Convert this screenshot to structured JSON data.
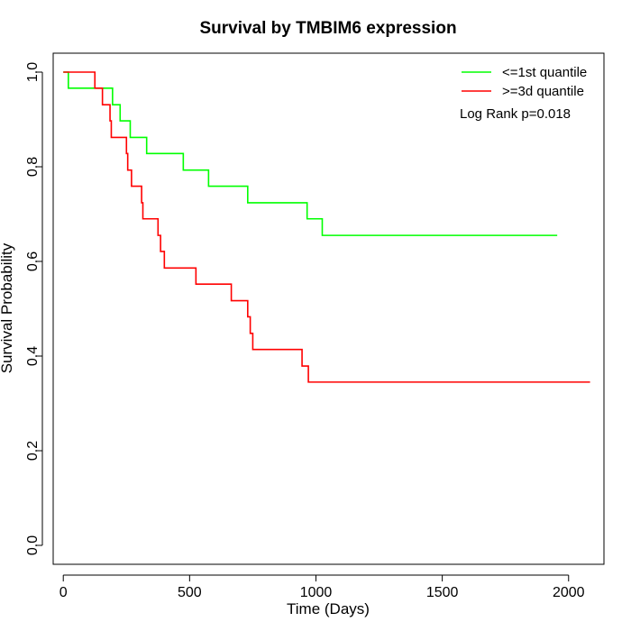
{
  "chart_data": {
    "type": "line",
    "title": "Survival by TMBIM6 expression",
    "xlabel": "Time (Days)",
    "ylabel": "Survival Probability",
    "xlim": [
      -40,
      2140
    ],
    "ylim": [
      -0.04,
      1.04
    ],
    "x_ticks": [
      0,
      500,
      1000,
      1500,
      2000
    ],
    "y_ticks": [
      0.0,
      0.2,
      0.4,
      0.6,
      0.8,
      1.0
    ],
    "x_tick_labels": [
      "0",
      "500",
      "1000",
      "1500",
      "2000"
    ],
    "y_tick_labels": [
      "0.0",
      "0.2",
      "0.4",
      "0.6",
      "0.8",
      "1.0"
    ],
    "grid": false,
    "legend_position": "top-right",
    "annotation": "Log Rank p=0.018",
    "series": [
      {
        "name": "<=1st quantile",
        "color": "#00ff00",
        "step": true,
        "points": [
          [
            0,
            1.0
          ],
          [
            20,
            0.966
          ],
          [
            195,
            0.931
          ],
          [
            225,
            0.897
          ],
          [
            265,
            0.862
          ],
          [
            330,
            0.828
          ],
          [
            475,
            0.793
          ],
          [
            575,
            0.759
          ],
          [
            730,
            0.724
          ],
          [
            965,
            0.69
          ],
          [
            1025,
            0.655
          ],
          [
            1955,
            0.655
          ]
        ]
      },
      {
        "name": ">=3d quantile",
        "color": "#ff0000",
        "step": true,
        "points": [
          [
            0,
            1.0
          ],
          [
            125,
            0.966
          ],
          [
            155,
            0.931
          ],
          [
            185,
            0.897
          ],
          [
            190,
            0.862
          ],
          [
            250,
            0.828
          ],
          [
            255,
            0.793
          ],
          [
            270,
            0.759
          ],
          [
            310,
            0.724
          ],
          [
            315,
            0.69
          ],
          [
            375,
            0.655
          ],
          [
            385,
            0.621
          ],
          [
            400,
            0.586
          ],
          [
            525,
            0.552
          ],
          [
            665,
            0.517
          ],
          [
            730,
            0.483
          ],
          [
            740,
            0.448
          ],
          [
            750,
            0.414
          ],
          [
            945,
            0.379
          ],
          [
            970,
            0.345
          ],
          [
            2085,
            0.345
          ]
        ]
      }
    ]
  }
}
